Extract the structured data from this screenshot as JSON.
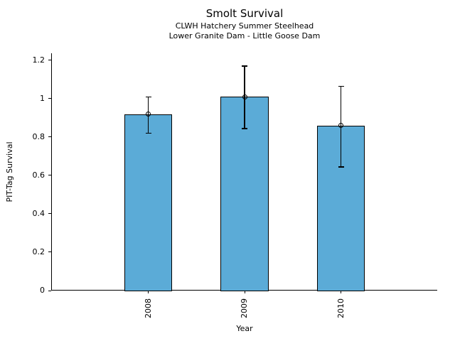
{
  "chart_data": {
    "type": "bar",
    "title": "Smolt Survival",
    "subtitles": [
      "CLWH Hatchery Summer Steelhead",
      "Lower Granite Dam - Little Goose Dam"
    ],
    "xlabel": "Year",
    "ylabel": "PIT-Tag Survival",
    "categories": [
      "2008",
      "2009",
      "2010"
    ],
    "values": [
      0.92,
      1.01,
      0.86
    ],
    "error_low": [
      0.82,
      0.845,
      0.645
    ],
    "error_high": [
      1.01,
      1.17,
      1.065
    ],
    "yticks": [
      0,
      0.2,
      0.4,
      0.6,
      0.8,
      1,
      1.2
    ],
    "ytick_labels": [
      "0",
      "0.2",
      "0.4",
      "0.6",
      "0.8",
      "1",
      "1.2"
    ],
    "ylim": [
      0,
      1.237
    ],
    "xlim": [
      -1,
      3
    ],
    "bar_positions": [
      0,
      1,
      2
    ],
    "bar_width_units": 0.5,
    "bar_color": "#5BABD7",
    "bar_edge_color": "#000000",
    "error_color": "#000000",
    "marker": "open-circle",
    "grid": false,
    "legend": false
  }
}
